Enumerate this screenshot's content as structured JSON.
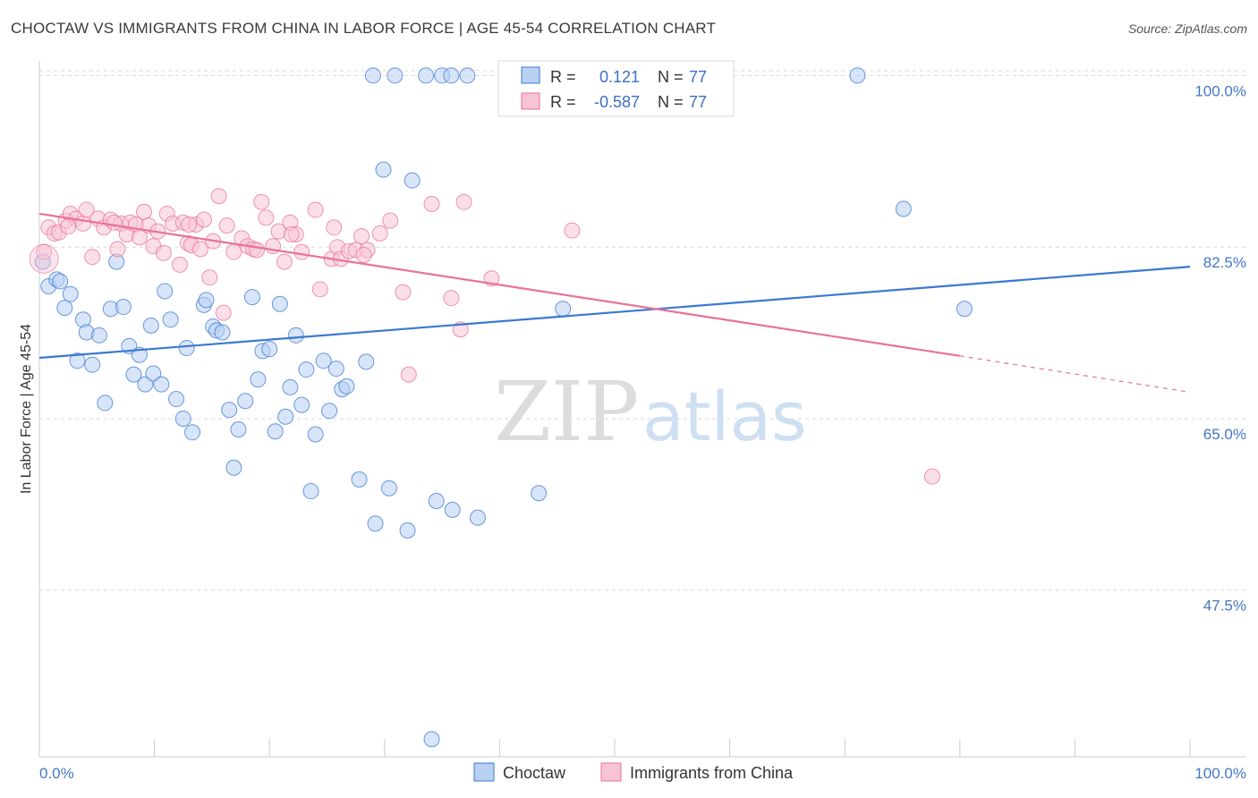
{
  "header": {
    "title": "CHOCTAW VS IMMIGRANTS FROM CHINA IN LABOR FORCE | AGE 45-54 CORRELATION CHART",
    "source": "Source: ZipAtlas.com"
  },
  "colors": {
    "blue": "#3a78d4",
    "blue_fill": "#b8d0f2",
    "pink": "#e8729a",
    "pink_fill": "#f7c4d5",
    "grid": "#d8d8d8",
    "axis_text": "#4477c4"
  },
  "watermark": {
    "zip": "ZIP",
    "atlas": "atlas"
  },
  "legend": {
    "r_label": "R =",
    "n_label": "N =",
    "rows": [
      {
        "r": "0.121",
        "n": "77"
      },
      {
        "r": "-0.587",
        "n": "77"
      }
    ]
  },
  "chart_data": {
    "type": "scatter",
    "title": "CHOCTAW VS IMMIGRANTS FROM CHINA IN LABOR FORCE | AGE 45-54 CORRELATION CHART",
    "xlabel": "",
    "ylabel": "In Labor Force | Age 45-54",
    "xlim": [
      0,
      100
    ],
    "ylim": [
      30.5,
      101.5
    ],
    "x_tick_labels": [
      "0.0%",
      "100.0%"
    ],
    "y_ticks": [
      100,
      82.5,
      65,
      47.5
    ],
    "y_tick_labels": [
      "100.0%",
      "82.5%",
      "65.0%",
      "47.5%"
    ],
    "grid": true,
    "legend_position": "bottom",
    "series": [
      {
        "name": "Choctaw",
        "r": 0.121,
        "n": 77,
        "trend": {
          "x": [
            0,
            100
          ],
          "y": [
            71.2,
            80.5
          ]
        },
        "points": [
          [
            0.3,
            81.0
          ],
          [
            0.8,
            78.5
          ],
          [
            1.5,
            79.2
          ],
          [
            1.8,
            79.0
          ],
          [
            2.2,
            76.3
          ],
          [
            2.7,
            77.7
          ],
          [
            3.3,
            70.9
          ],
          [
            3.8,
            75.1
          ],
          [
            4.1,
            73.8
          ],
          [
            4.6,
            70.5
          ],
          [
            5.2,
            73.5
          ],
          [
            5.7,
            66.6
          ],
          [
            6.2,
            76.2
          ],
          [
            6.7,
            81.0
          ],
          [
            7.3,
            76.4
          ],
          [
            7.8,
            72.4
          ],
          [
            8.2,
            69.5
          ],
          [
            8.7,
            71.5
          ],
          [
            9.2,
            68.5
          ],
          [
            9.7,
            74.5
          ],
          [
            9.9,
            69.6
          ],
          [
            10.6,
            68.5
          ],
          [
            10.9,
            78.0
          ],
          [
            11.4,
            75.1
          ],
          [
            11.9,
            67.0
          ],
          [
            12.5,
            65.0
          ],
          [
            12.8,
            72.2
          ],
          [
            13.3,
            63.6
          ],
          [
            14.3,
            76.6
          ],
          [
            14.5,
            77.1
          ],
          [
            15.1,
            74.4
          ],
          [
            15.4,
            74.0
          ],
          [
            15.9,
            73.8
          ],
          [
            16.5,
            65.9
          ],
          [
            16.9,
            60.0
          ],
          [
            17.3,
            63.9
          ],
          [
            17.9,
            66.8
          ],
          [
            18.5,
            77.4
          ],
          [
            19.0,
            69.0
          ],
          [
            19.4,
            71.9
          ],
          [
            20.0,
            72.1
          ],
          [
            20.5,
            63.7
          ],
          [
            20.9,
            76.7
          ],
          [
            21.4,
            65.2
          ],
          [
            21.8,
            68.2
          ],
          [
            22.3,
            73.5
          ],
          [
            22.8,
            66.4
          ],
          [
            23.2,
            70.0
          ],
          [
            23.6,
            57.6
          ],
          [
            24.0,
            63.4
          ],
          [
            24.7,
            70.9
          ],
          [
            25.2,
            65.8
          ],
          [
            25.8,
            70.1
          ],
          [
            26.3,
            68.0
          ],
          [
            26.7,
            68.3
          ],
          [
            27.8,
            58.8
          ],
          [
            28.4,
            70.8
          ],
          [
            29.0,
            100.0
          ],
          [
            29.2,
            54.3
          ],
          [
            29.9,
            90.4
          ],
          [
            30.4,
            57.9
          ],
          [
            30.9,
            100.0
          ],
          [
            32.0,
            53.6
          ],
          [
            32.4,
            89.3
          ],
          [
            33.6,
            100.0
          ],
          [
            34.5,
            56.6
          ],
          [
            35.0,
            100.0
          ],
          [
            35.8,
            100.0
          ],
          [
            35.9,
            55.7
          ],
          [
            37.2,
            100.0
          ],
          [
            38.1,
            54.9
          ],
          [
            43.4,
            57.4
          ],
          [
            45.5,
            76.2
          ],
          [
            71.1,
            100.0
          ],
          [
            75.1,
            86.4
          ],
          [
            80.4,
            76.2
          ],
          [
            34.1,
            32.3
          ]
        ]
      },
      {
        "name": "Immigrants from China",
        "r": -0.587,
        "n": 77,
        "trend": {
          "x": [
            0,
            80
          ],
          "y": [
            85.9,
            71.4
          ]
        },
        "trend_dashed": {
          "x": [
            80,
            100
          ],
          "y": [
            71.4,
            67.7
          ]
        },
        "points": [
          [
            0.4,
            82.0
          ],
          [
            0.8,
            84.5
          ],
          [
            1.3,
            83.9
          ],
          [
            1.7,
            84.0
          ],
          [
            2.3,
            85.2
          ],
          [
            2.7,
            85.9
          ],
          [
            3.2,
            85.4
          ],
          [
            3.8,
            84.9
          ],
          [
            4.1,
            86.3
          ],
          [
            4.6,
            81.5
          ],
          [
            5.1,
            85.4
          ],
          [
            5.6,
            84.5
          ],
          [
            6.2,
            85.3
          ],
          [
            6.8,
            82.3
          ],
          [
            7.1,
            84.9
          ],
          [
            7.6,
            83.8
          ],
          [
            7.9,
            85.0
          ],
          [
            8.4,
            84.8
          ],
          [
            8.7,
            83.5
          ],
          [
            9.1,
            86.1
          ],
          [
            9.5,
            84.7
          ],
          [
            9.9,
            82.6
          ],
          [
            10.3,
            84.1
          ],
          [
            10.8,
            81.9
          ],
          [
            11.1,
            85.9
          ],
          [
            11.6,
            84.9
          ],
          [
            12.2,
            80.7
          ],
          [
            12.5,
            85.0
          ],
          [
            12.9,
            82.9
          ],
          [
            13.2,
            82.7
          ],
          [
            13.6,
            84.8
          ],
          [
            14.0,
            82.3
          ],
          [
            14.3,
            85.3
          ],
          [
            14.8,
            79.4
          ],
          [
            15.1,
            83.1
          ],
          [
            15.6,
            87.7
          ],
          [
            16.3,
            84.7
          ],
          [
            16.9,
            82.0
          ],
          [
            17.6,
            83.4
          ],
          [
            18.1,
            82.6
          ],
          [
            18.6,
            82.3
          ],
          [
            18.9,
            82.2
          ],
          [
            19.3,
            87.1
          ],
          [
            19.7,
            85.5
          ],
          [
            20.3,
            82.6
          ],
          [
            20.8,
            84.1
          ],
          [
            21.3,
            81.0
          ],
          [
            21.8,
            85.0
          ],
          [
            22.3,
            83.8
          ],
          [
            22.8,
            82.0
          ],
          [
            24.0,
            86.3
          ],
          [
            24.4,
            78.2
          ],
          [
            25.4,
            81.3
          ],
          [
            25.9,
            82.5
          ],
          [
            26.2,
            81.3
          ],
          [
            26.9,
            82.1
          ],
          [
            27.5,
            82.2
          ],
          [
            28.0,
            83.6
          ],
          [
            28.5,
            82.2
          ],
          [
            29.6,
            83.9
          ],
          [
            30.5,
            85.2
          ],
          [
            31.6,
            77.9
          ],
          [
            32.1,
            69.5
          ],
          [
            34.1,
            86.9
          ],
          [
            35.8,
            77.3
          ],
          [
            36.6,
            74.1
          ],
          [
            36.9,
            87.1
          ],
          [
            39.3,
            79.3
          ],
          [
            46.3,
            84.2
          ],
          [
            77.6,
            59.1
          ],
          [
            2.5,
            84.6
          ],
          [
            6.5,
            85.0
          ],
          [
            13.0,
            84.8
          ],
          [
            21.9,
            83.8
          ],
          [
            25.6,
            84.5
          ],
          [
            16.0,
            75.8
          ],
          [
            28.2,
            81.7
          ]
        ]
      }
    ]
  }
}
